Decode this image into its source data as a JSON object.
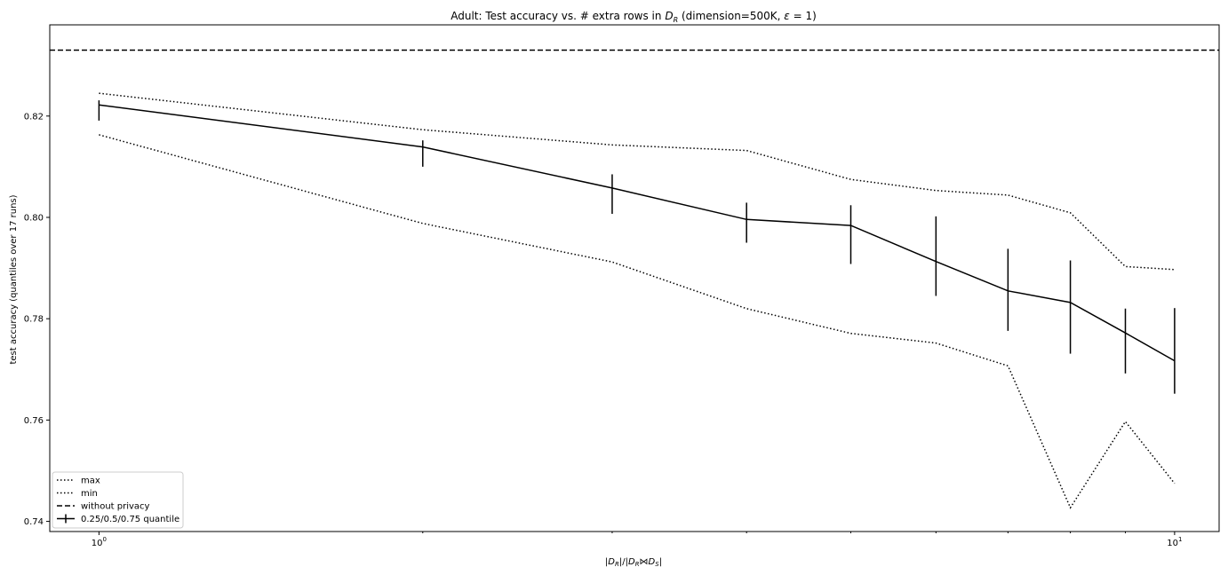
{
  "chart_data": {
    "type": "line",
    "title_prefix": "Adult: Test accuracy vs. # extra rows in ",
    "title_math_base": "D",
    "title_math_sub": "R",
    "title_suffix": " (dimension=500K, ",
    "title_eps": "ε",
    "title_end": " = 1)",
    "ylabel": "test accuracy (quantiles over 17 runs)",
    "xlabel": "|D_R|/|D_R⋈D_S|",
    "x_scale": "log",
    "xlim": [
      0.9,
      11
    ],
    "ylim": [
      0.738,
      0.838
    ],
    "x_ticks": [
      {
        "value": 1,
        "base": "10",
        "exp": "0"
      },
      {
        "value": 10,
        "base": "10",
        "exp": "1"
      }
    ],
    "x_minor_ticks": [
      2,
      3,
      4,
      5,
      6,
      7,
      8,
      9
    ],
    "y_ticks": [
      {
        "value": 0.74,
        "label": "0.74"
      },
      {
        "value": 0.76,
        "label": "0.76"
      },
      {
        "value": 0.78,
        "label": "0.78"
      },
      {
        "value": 0.8,
        "label": "0.80"
      },
      {
        "value": 0.82,
        "label": "0.82"
      }
    ],
    "x": [
      1,
      2,
      3,
      4,
      5,
      6,
      7,
      8,
      9,
      10
    ],
    "series": [
      {
        "name": "max",
        "style": "dotted",
        "values": [
          0.8245,
          0.8173,
          0.8143,
          0.8132,
          0.8075,
          0.8053,
          0.8044,
          0.8009,
          0.7903,
          0.7897
        ]
      },
      {
        "name": "min",
        "style": "dotted",
        "values": [
          0.8163,
          0.7988,
          0.7912,
          0.782,
          0.7771,
          0.7752,
          0.7707,
          0.7427,
          0.7597,
          0.7475
        ]
      },
      {
        "name": "without privacy",
        "style": "dashed",
        "constant": 0.833
      },
      {
        "name": "0.25/0.5/0.75 quantile",
        "style": "solid-errorbar",
        "values": [
          0.8222,
          0.8139,
          0.8058,
          0.7996,
          0.7984,
          0.7913,
          0.7855,
          0.7832,
          0.7772,
          0.7717
        ],
        "lower": [
          0.8191,
          0.81,
          0.8007,
          0.795,
          0.7908,
          0.7845,
          0.7776,
          0.7731,
          0.7692,
          0.7652
        ],
        "upper": [
          0.8231,
          0.8152,
          0.8085,
          0.8029,
          0.8024,
          0.8002,
          0.7938,
          0.7915,
          0.782,
          0.7821
        ]
      }
    ],
    "legend_location": "lower-left",
    "grid": false,
    "colors": {
      "line": "#000000",
      "background": "#ffffff",
      "legend_border": "#cccccc"
    }
  }
}
